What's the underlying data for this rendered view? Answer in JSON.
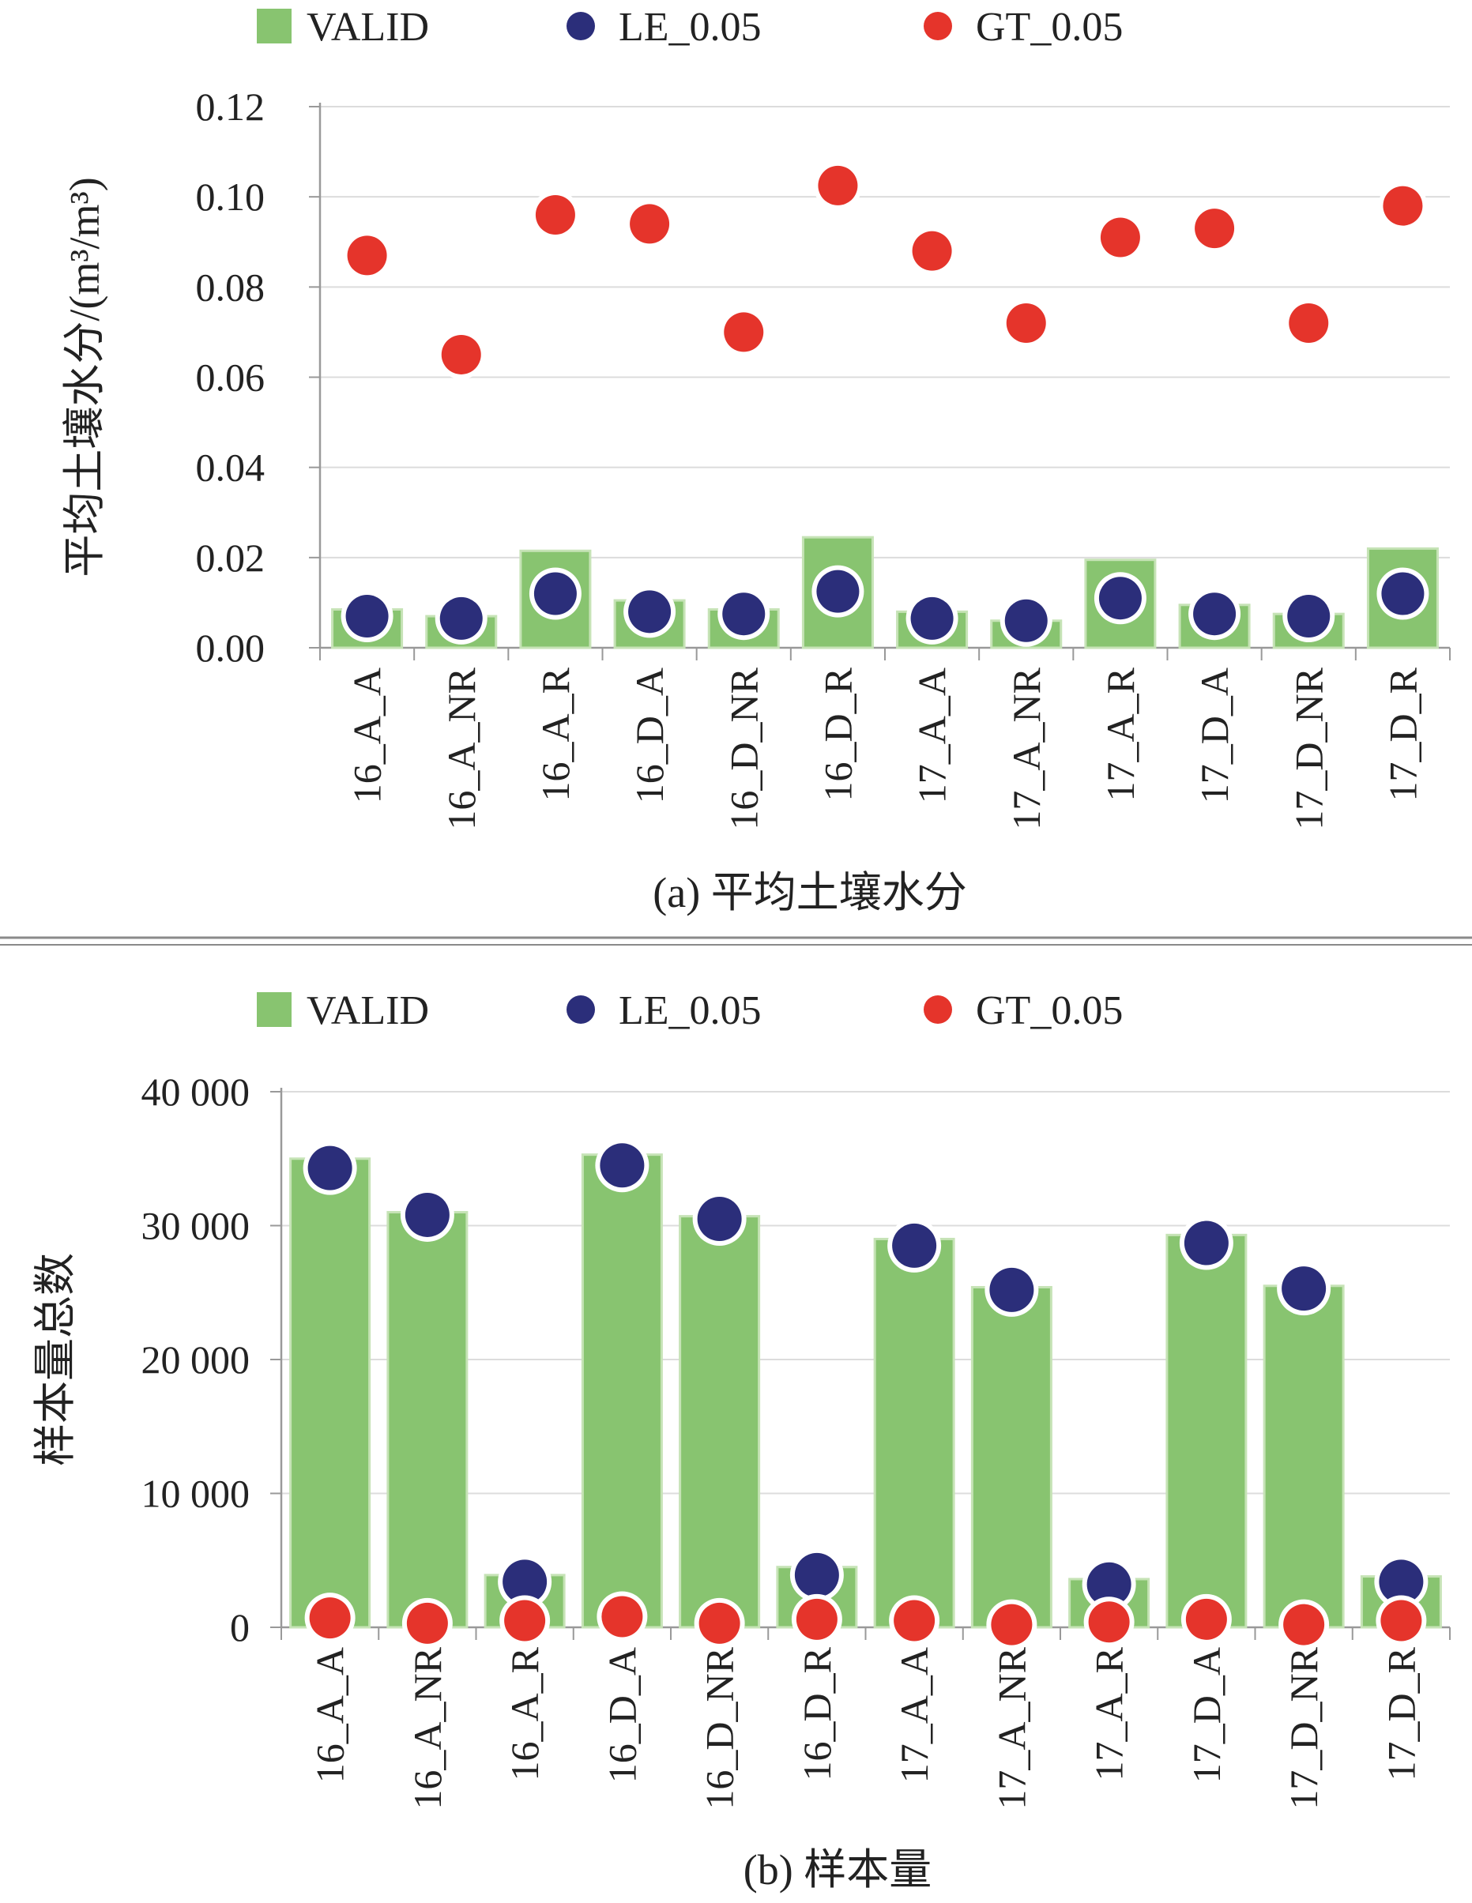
{
  "colors": {
    "valid": "#88c470",
    "valid_edge": "#c6e3b6",
    "le": "#2b2e7a",
    "gt": "#e5342b",
    "grid": "#dcdcdc",
    "axis": "#999999",
    "separator": "#8a8a8a"
  },
  "legend": [
    "VALID",
    "LE_0.05",
    "GT_0.05"
  ],
  "chart_data": [
    {
      "type": "bar",
      "caption": "(a) 平均土壤水分",
      "ylabel": "平均土壤水分/(m³/m³)",
      "ylim": [
        0,
        0.12
      ],
      "yticks": [
        {
          "value": 0.0,
          "label": "0.00"
        },
        {
          "value": 0.02,
          "label": "0.02"
        },
        {
          "value": 0.04,
          "label": "0.04"
        },
        {
          "value": 0.06,
          "label": "0.06"
        },
        {
          "value": 0.08,
          "label": "0.08"
        },
        {
          "value": 0.1,
          "label": "0.10"
        },
        {
          "value": 0.12,
          "label": "0.12"
        }
      ],
      "grid": true,
      "legend_position": "top",
      "categories": [
        "16_A_A",
        "16_A_NR",
        "16_A_R",
        "16_D_A",
        "16_D_NR",
        "16_D_R",
        "17_A_A",
        "17_A_NR",
        "17_A_R",
        "17_D_A",
        "17_D_NR",
        "17_D_R"
      ],
      "series": [
        {
          "name": "VALID",
          "kind": "bar",
          "values": [
            0.0085,
            0.007,
            0.0215,
            0.0105,
            0.0085,
            0.0245,
            0.008,
            0.006,
            0.0195,
            0.0095,
            0.0075,
            0.022
          ]
        },
        {
          "name": "LE_0.05",
          "kind": "point",
          "values": [
            0.007,
            0.0065,
            0.012,
            0.008,
            0.0075,
            0.0125,
            0.0065,
            0.006,
            0.011,
            0.0075,
            0.007,
            0.012
          ]
        },
        {
          "name": "GT_0.05",
          "kind": "point",
          "values": [
            0.087,
            0.065,
            0.096,
            0.094,
            0.07,
            0.1025,
            0.088,
            0.072,
            0.091,
            0.093,
            0.072,
            0.098
          ]
        }
      ]
    },
    {
      "type": "bar",
      "caption": "(b) 样本量",
      "ylabel": "样本量总数",
      "ylim": [
        0,
        40000
      ],
      "yticks": [
        {
          "value": 0,
          "label": "0"
        },
        {
          "value": 10000,
          "label": "10 000"
        },
        {
          "value": 20000,
          "label": "20 000"
        },
        {
          "value": 30000,
          "label": "30 000"
        },
        {
          "value": 40000,
          "label": "40 000"
        }
      ],
      "grid": true,
      "legend_position": "top",
      "categories": [
        "16_A_A",
        "16_A_NR",
        "16_A_R",
        "16_D_A",
        "16_D_NR",
        "16_D_R",
        "17_A_A",
        "17_A_NR",
        "17_A_R",
        "17_D_A",
        "17_D_NR",
        "17_D_R"
      ],
      "series": [
        {
          "name": "VALID",
          "kind": "bar",
          "values": [
            35000,
            31000,
            3900,
            35300,
            30700,
            4500,
            29000,
            25400,
            3600,
            29300,
            25500,
            3800
          ]
        },
        {
          "name": "LE_0.05",
          "kind": "point",
          "values": [
            34300,
            30800,
            3400,
            34500,
            30500,
            3900,
            28500,
            25200,
            3200,
            28700,
            25300,
            3400
          ]
        },
        {
          "name": "GT_0.05",
          "kind": "point",
          "values": [
            700,
            300,
            500,
            800,
            300,
            600,
            500,
            200,
            400,
            600,
            200,
            500
          ]
        }
      ]
    }
  ]
}
